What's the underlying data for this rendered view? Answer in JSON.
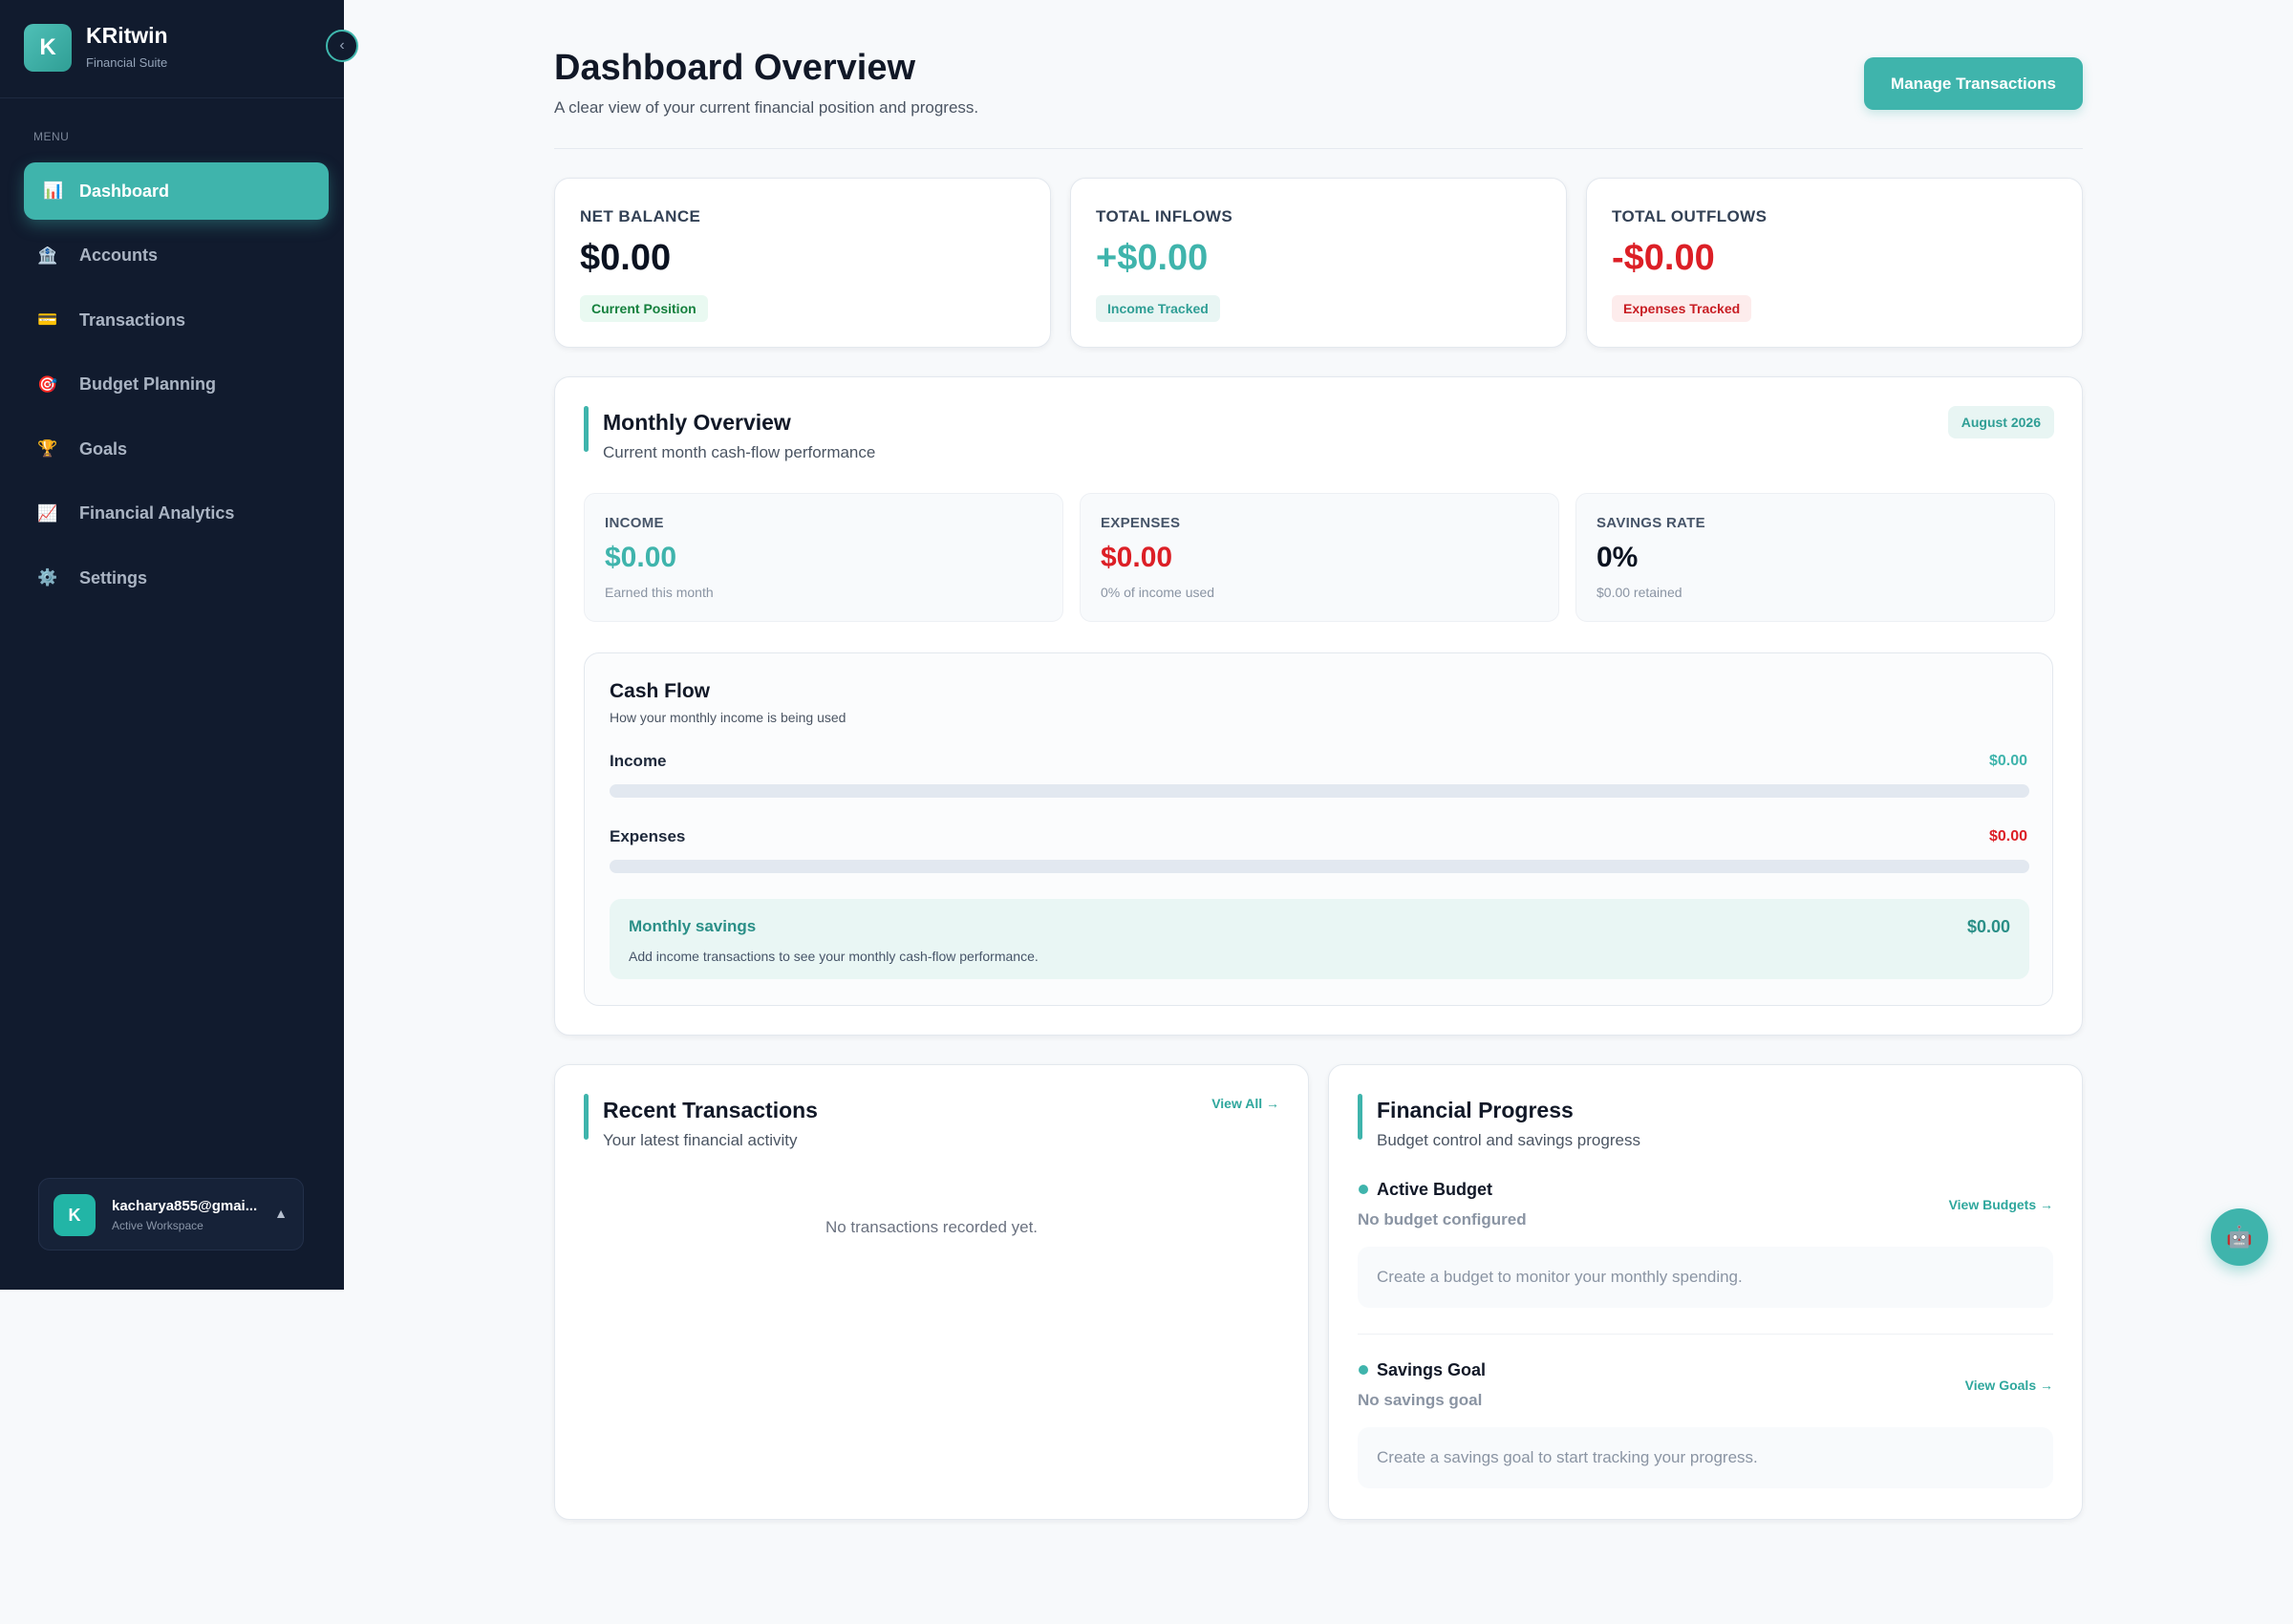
{
  "colors": {
    "accent": "#3fb4ac",
    "sidebar_bg": "#111b2e",
    "positive": "#3fb4ac",
    "negative": "#dc1f26",
    "neutral": "#111827"
  },
  "sidebar": {
    "brand_initial": "K",
    "brand_name": "KRitwin",
    "brand_sub": "Financial Suite",
    "collapse_icon": "‹",
    "menu_label": "MENU",
    "items": [
      {
        "label": "Dashboard",
        "icon": "📊",
        "icon_name": "bar-chart-icon",
        "active": true
      },
      {
        "label": "Accounts",
        "icon": "🏦",
        "icon_name": "bank-icon",
        "active": false
      },
      {
        "label": "Transactions",
        "icon": "💳",
        "icon_name": "credit-card-icon",
        "active": false
      },
      {
        "label": "Budget Planning",
        "icon": "🎯",
        "icon_name": "target-icon",
        "active": false
      },
      {
        "label": "Goals",
        "icon": "🏆",
        "icon_name": "trophy-icon",
        "active": false
      },
      {
        "label": "Financial Analytics",
        "icon": "📈",
        "icon_name": "trend-chart-icon",
        "active": false
      },
      {
        "label": "Settings",
        "icon": "⚙️",
        "icon_name": "gear-icon",
        "active": false
      }
    ],
    "user": {
      "initial": "K",
      "email": "kacharya855@gmai...",
      "workspace": "Active Workspace",
      "caret": "▲"
    }
  },
  "header": {
    "title": "Dashboard Overview",
    "subtitle": "A clear view of your current financial position and progress.",
    "manage_label": "Manage Transactions"
  },
  "stats": [
    {
      "label": "NET BALANCE",
      "value": "$0.00",
      "badge": "Current Position",
      "tone": "neutral"
    },
    {
      "label": "TOTAL INFLOWS",
      "value": "+$0.00",
      "badge": "Income Tracked",
      "tone": "positive"
    },
    {
      "label": "TOTAL OUTFLOWS",
      "value": "-$0.00",
      "badge": "Expenses Tracked",
      "tone": "negative"
    }
  ],
  "monthly": {
    "title": "Monthly Overview",
    "subtitle": "Current month cash-flow performance",
    "period": "August 2026",
    "metrics": [
      {
        "label": "INCOME",
        "value": "$0.00",
        "sub": "Earned this month",
        "tone": "positive"
      },
      {
        "label": "EXPENSES",
        "value": "$0.00",
        "sub": "0% of income used",
        "tone": "negative"
      },
      {
        "label": "SAVINGS RATE",
        "value": "0%",
        "sub": "$0.00 retained",
        "tone": "neutral"
      }
    ],
    "cashflow": {
      "title": "Cash Flow",
      "subtitle": "How your monthly income is being used",
      "rows": [
        {
          "label": "Income",
          "value": "$0.00",
          "fill": 0,
          "tone": "positive"
        },
        {
          "label": "Expenses",
          "value": "$0.00",
          "fill": 0,
          "tone": "negative"
        }
      ],
      "savings": {
        "title": "Monthly savings",
        "value": "$0.00",
        "note": "Add income transactions to see your monthly cash-flow performance."
      }
    }
  },
  "recent": {
    "title": "Recent Transactions",
    "subtitle": "Your latest financial activity",
    "view_all": "View All →",
    "empty": "No transactions recorded yet."
  },
  "progress": {
    "title": "Financial Progress",
    "subtitle": "Budget control and savings progress",
    "budget": {
      "label": "Active Budget",
      "status": "No budget configured",
      "link": "View Budgets →",
      "hint": "Create a budget to monitor your monthly spending."
    },
    "goal": {
      "label": "Savings Goal",
      "status": "No savings goal",
      "link": "View Goals →",
      "hint": "Create a savings goal to start tracking your progress."
    }
  },
  "fab": {
    "icon": "🤖",
    "icon_name": "assistant-bot-icon"
  }
}
